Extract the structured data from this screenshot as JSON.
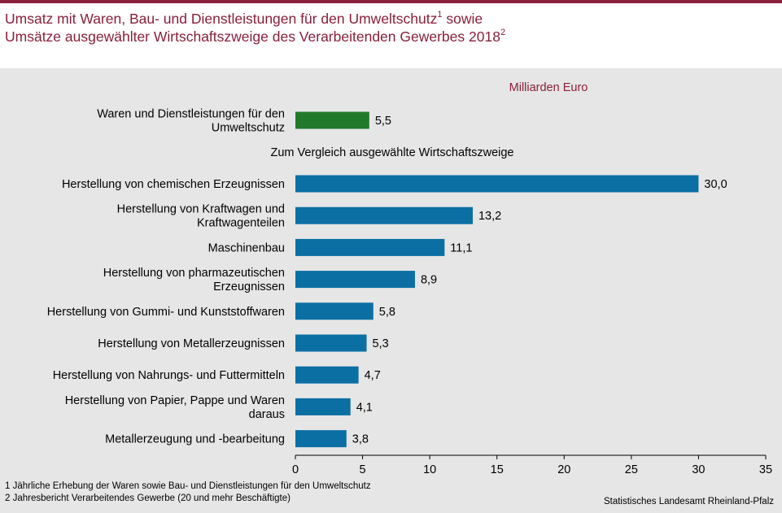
{
  "title": {
    "line1": "Umsatz mit Waren, Bau- und Dienstleistungen für den Umweltschutz",
    "line1_sup": "1",
    "line1_end": " sowie",
    "line2": "Umsätze ausgewählter Wirtschaftszweige des Verarbeitenden Gewerbes 2018",
    "line2_sup": "2"
  },
  "unit_label": "Milliarden Euro",
  "comparison_heading": "Zum Vergleich ausgewählte Wirtschaftszweige",
  "footnotes": [
    "1 Jährliche Erhebung der Waren sowie Bau- und Dienstleistungen für den Umweltschutz",
    "2 Jahresbericht   Verarbeitendes Gewerbe (20 und mehr Beschäftigte)"
  ],
  "source": "Statistisches Landesamt Rheinland-Pfalz",
  "colors": {
    "accent": "#8a1f3a",
    "highlight_bar": "#217a2b",
    "bar": "#0b6fa3",
    "background": "#e6e6e6"
  },
  "chart_data": {
    "type": "bar",
    "orientation": "horizontal",
    "unit": "Milliarden Euro",
    "xlim": [
      0,
      35
    ],
    "xticks": [
      0,
      5,
      10,
      15,
      20,
      25,
      30,
      35
    ],
    "grid": false,
    "highlight": {
      "label_lines": [
        "Waren und Dienstleistungen für den",
        "Umweltschutz"
      ],
      "value": 5.5,
      "value_label": "5,5"
    },
    "categories": [
      {
        "label_lines": [
          "Herstellung von chemischen Erzeugnissen"
        ],
        "value": 30.0,
        "value_label": "30,0"
      },
      {
        "label_lines": [
          "Herstellung von Kraftwagen und",
          "Kraftwagenteilen"
        ],
        "value": 13.2,
        "value_label": "13,2"
      },
      {
        "label_lines": [
          "Maschinenbau"
        ],
        "value": 11.1,
        "value_label": "11,1"
      },
      {
        "label_lines": [
          "Herstellung von pharmazeutischen",
          "Erzeugnissen"
        ],
        "value": 8.9,
        "value_label": "8,9"
      },
      {
        "label_lines": [
          "Herstellung von Gummi- und Kunststoffwaren"
        ],
        "value": 5.8,
        "value_label": "5,8"
      },
      {
        "label_lines": [
          "Herstellung von Metallerzeugnissen"
        ],
        "value": 5.3,
        "value_label": "5,3"
      },
      {
        "label_lines": [
          "Herstellung von Nahrungs- und Futtermitteln"
        ],
        "value": 4.7,
        "value_label": "4,7"
      },
      {
        "label_lines": [
          "Herstellung von Papier, Pappe und Waren",
          "daraus"
        ],
        "value": 4.1,
        "value_label": "4,1"
      },
      {
        "label_lines": [
          "Metallerzeugung und -bearbeitung"
        ],
        "value": 3.8,
        "value_label": "3,8"
      }
    ]
  }
}
